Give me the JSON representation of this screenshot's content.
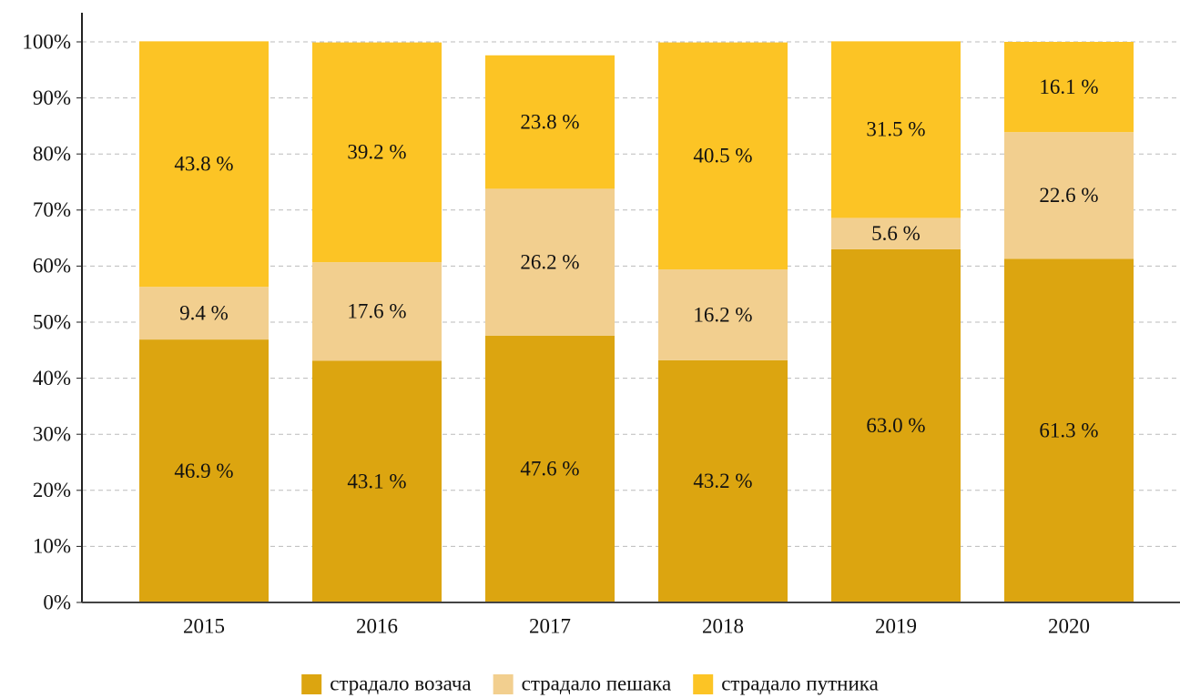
{
  "chart_data": {
    "type": "stacked_bar",
    "categories": [
      "2015",
      "2016",
      "2017",
      "2018",
      "2019",
      "2020"
    ],
    "series": [
      {
        "name": "страдало возача",
        "color": "#dca510",
        "values": [
          46.9,
          43.1,
          47.6,
          43.2,
          63.0,
          61.3
        ],
        "value_labels": [
          "46.9 %",
          "43.1 %",
          "47.6 %",
          "43.2 %",
          "63.0 %",
          "61.3 %"
        ]
      },
      {
        "name": "страдало пешака",
        "color": "#f2cf8f",
        "values": [
          9.4,
          17.6,
          26.2,
          16.2,
          5.6,
          22.6
        ],
        "value_labels": [
          "9.4 %",
          "17.6 %",
          "26.2 %",
          "16.2 %",
          "5.6 %",
          "22.6 %"
        ]
      },
      {
        "name": "страдало путника",
        "color": "#fcc425",
        "values": [
          43.8,
          39.2,
          23.8,
          40.5,
          31.5,
          16.1
        ],
        "value_labels": [
          "43.8 %",
          "39.2 %",
          "23.8 %",
          "40.5 %",
          "31.5 %",
          "16.1 %"
        ]
      }
    ],
    "ylim": [
      0,
      100
    ],
    "yticks": [
      {
        "value": 0,
        "label": "0%"
      },
      {
        "value": 10,
        "label": "10%"
      },
      {
        "value": 20,
        "label": "20%"
      },
      {
        "value": 30,
        "label": "30%"
      },
      {
        "value": 40,
        "label": "40%"
      },
      {
        "value": 50,
        "label": "50%"
      },
      {
        "value": 60,
        "label": "60%"
      },
      {
        "value": 70,
        "label": "70%"
      },
      {
        "value": 80,
        "label": "80%"
      },
      {
        "value": 90,
        "label": "90%"
      },
      {
        "value": 100,
        "label": "100%"
      }
    ],
    "grid": true,
    "legend": "bottom"
  }
}
